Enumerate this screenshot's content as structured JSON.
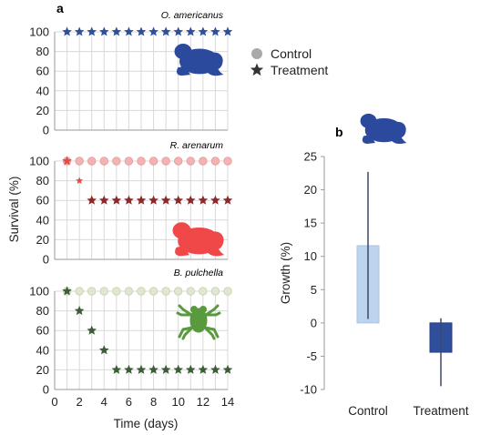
{
  "chart_data": [
    {
      "type": "scatter",
      "panel_label": "a",
      "title": "O. americanus",
      "x": [
        1,
        2,
        3,
        4,
        5,
        6,
        7,
        8,
        9,
        10,
        11,
        12,
        13,
        14
      ],
      "series": [
        {
          "name": "Control",
          "marker": "circle",
          "values": [
            100,
            100,
            100,
            100,
            100,
            100,
            100,
            100,
            100,
            100,
            100,
            100,
            100,
            100
          ]
        },
        {
          "name": "Treatment",
          "marker": "star",
          "values": [
            100,
            100,
            100,
            100,
            100,
            100,
            100,
            100,
            100,
            100,
            100,
            100,
            100,
            100
          ]
        }
      ],
      "ylim": [
        0,
        100
      ],
      "yticks": [
        "0",
        "20",
        "40",
        "60",
        "80",
        "100"
      ],
      "xlim": [
        0,
        14
      ],
      "grid": true,
      "colors": {
        "control": "#2f4f9c",
        "treatment": "#2f4f9c",
        "icon": "#2b4a9e"
      },
      "icon": "toad-icon"
    },
    {
      "type": "scatter",
      "title": "R. arenarum",
      "x": [
        1,
        2,
        3,
        4,
        5,
        6,
        7,
        8,
        9,
        10,
        11,
        12,
        13,
        14
      ],
      "series": [
        {
          "name": "Control",
          "marker": "circle",
          "values": [
            100,
            100,
            100,
            100,
            100,
            100,
            100,
            100,
            100,
            100,
            100,
            100,
            100,
            100
          ]
        },
        {
          "name": "Treatment",
          "marker": "star",
          "values": [
            100,
            80,
            60,
            60,
            60,
            60,
            60,
            60,
            60,
            60,
            60,
            60,
            60,
            60
          ]
        }
      ],
      "ylim": [
        0,
        100
      ],
      "yticks": [
        "0",
        "20",
        "40",
        "60",
        "80",
        "100"
      ],
      "xlim": [
        0,
        14
      ],
      "grid": true,
      "colors": {
        "control": "#f2b3b3",
        "treatment_first": "#e24a4a",
        "treatment": "#8b2a2a",
        "icon": "#f04848"
      },
      "icon": "toad-icon"
    },
    {
      "type": "scatter",
      "title": "B. pulchella",
      "x": [
        1,
        2,
        3,
        4,
        5,
        6,
        7,
        8,
        9,
        10,
        11,
        12,
        13,
        14
      ],
      "series": [
        {
          "name": "Control",
          "marker": "circle",
          "values": [
            100,
            100,
            100,
            100,
            100,
            100,
            100,
            100,
            100,
            100,
            100,
            100,
            100,
            100
          ]
        },
        {
          "name": "Treatment",
          "marker": "star",
          "values": [
            100,
            80,
            60,
            40,
            20,
            20,
            20,
            20,
            20,
            20,
            20,
            20,
            20,
            20
          ]
        }
      ],
      "ylim": [
        0,
        100
      ],
      "yticks": [
        "0",
        "20",
        "40",
        "60",
        "80",
        "100"
      ],
      "xticks": [
        "0",
        "2",
        "4",
        "6",
        "8",
        "10",
        "12",
        "14"
      ],
      "xlim": [
        0,
        14
      ],
      "xlabel": "Time (days)",
      "grid": true,
      "colors": {
        "control": "#dfe8cf",
        "treatment": "#3d5c38",
        "icon": "#5a9a3e"
      },
      "icon": "tree-frog-icon"
    },
    {
      "type": "bar",
      "panel_label": "b",
      "categories": [
        "Control",
        "Treatment"
      ],
      "values": [
        11.6,
        -4.4
      ],
      "error_bars": [
        {
          "low": 0.6,
          "high": 22.7
        },
        {
          "low": -9.5,
          "high": 0.7
        }
      ],
      "ylabel": "Growth (%)",
      "ylim": [
        -10,
        25
      ],
      "yticks": [
        "-10",
        "-5",
        "0",
        "5",
        "10",
        "15",
        "20",
        "25"
      ],
      "colors": {
        "Control": "#bdd4ee",
        "Treatment": "#2f4f9c",
        "error": "#3a4a6a",
        "icon": "#2b4a9e"
      },
      "icon": "toad-icon"
    }
  ],
  "shared_ylabel": "Survival (%)",
  "legend": [
    {
      "label": "Control",
      "marker": "circle",
      "color": "#aaaaaa"
    },
    {
      "label": "Treatment",
      "marker": "star",
      "color": "#333333"
    }
  ]
}
